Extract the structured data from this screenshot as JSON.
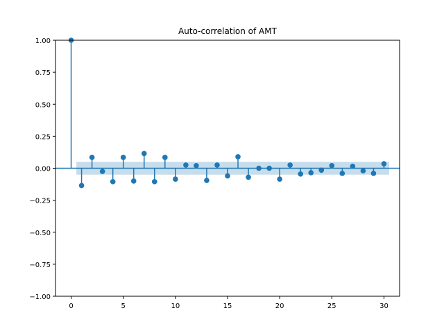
{
  "chart_data": {
    "type": "stem",
    "title": "Auto-correlation of AMT",
    "xlabel": "",
    "ylabel": "",
    "xlim": [
      -1.5,
      31.5
    ],
    "ylim": [
      -1.0,
      1.0
    ],
    "xticks": [
      0,
      5,
      10,
      15,
      20,
      25,
      30
    ],
    "yticks": [
      -1.0,
      -0.75,
      -0.5,
      -0.25,
      0.0,
      0.25,
      0.5,
      0.75,
      1.0
    ],
    "xtick_labels": [
      "0",
      "5",
      "10",
      "15",
      "20",
      "25",
      "30"
    ],
    "ytick_labels": [
      "−1.00",
      "−0.75",
      "−0.50",
      "−0.25",
      "0.00",
      "0.25",
      "0.50",
      "0.75",
      "1.00"
    ],
    "grid": false,
    "colors": {
      "series": "#1f77b4",
      "band": "#1f77b4"
    },
    "confidence_band": {
      "x": [
        0.5,
        30.5
      ],
      "upper": 0.05,
      "lower": -0.05
    },
    "lags": [
      0,
      1,
      2,
      3,
      4,
      5,
      6,
      7,
      8,
      9,
      10,
      11,
      12,
      13,
      14,
      15,
      16,
      17,
      18,
      19,
      20,
      21,
      22,
      23,
      24,
      25,
      26,
      27,
      28,
      29,
      30
    ],
    "values": [
      1.0,
      -0.135,
      0.085,
      -0.025,
      -0.105,
      0.085,
      -0.1,
      0.115,
      -0.105,
      0.085,
      -0.085,
      0.025,
      0.02,
      -0.095,
      0.025,
      -0.06,
      0.09,
      -0.07,
      0.0,
      0.0,
      -0.085,
      0.025,
      -0.045,
      -0.035,
      -0.015,
      0.02,
      -0.04,
      0.015,
      -0.02,
      -0.04,
      0.035
    ]
  }
}
